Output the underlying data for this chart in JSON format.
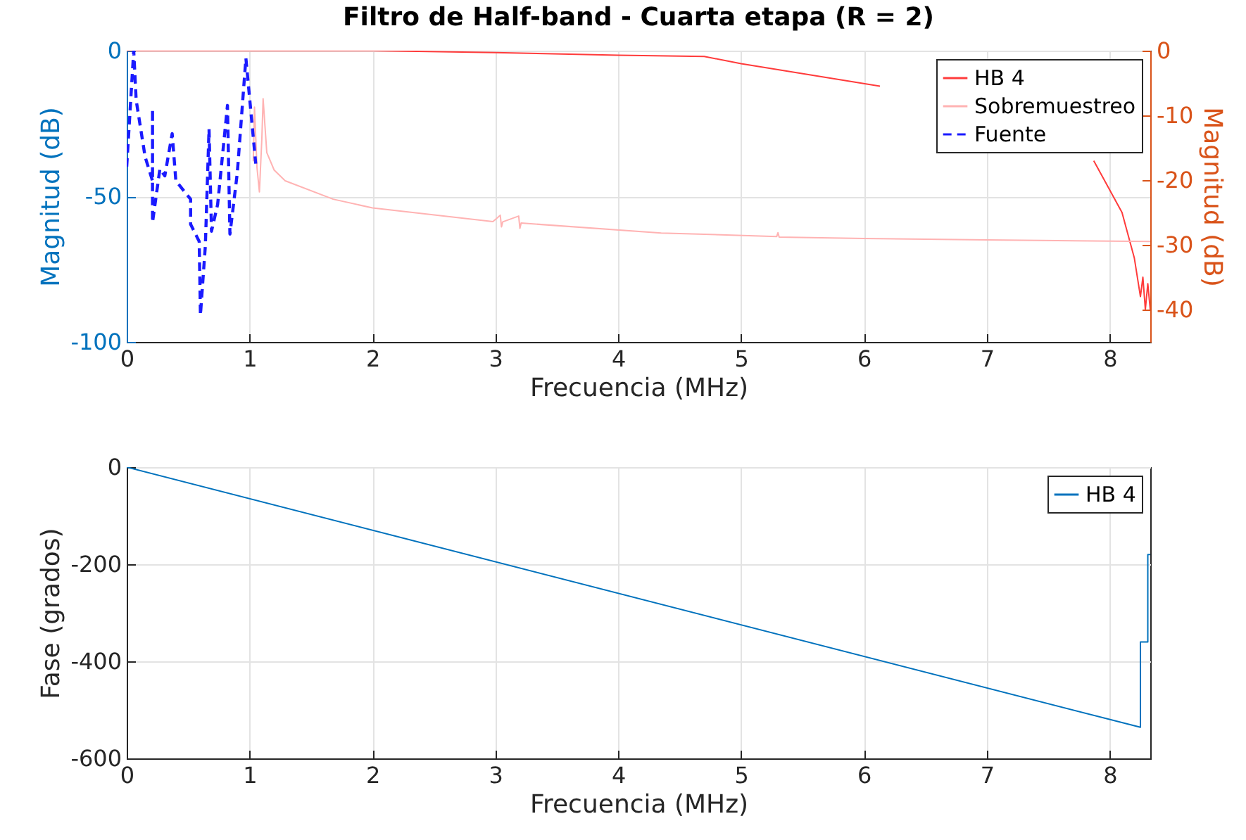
{
  "chart_data": [
    {
      "type": "line",
      "title": "Filtro de Half-band - Cuarta etapa (R = 2)",
      "xlabel": "Frecuencia (MHz)",
      "ylabel": "Magnitud (dB)",
      "y2label": "Magnitud (dB)",
      "xlim": [
        0,
        8.33
      ],
      "xticks": [
        0,
        1,
        2,
        3,
        4,
        5,
        6,
        7,
        8
      ],
      "ylim": [
        -100,
        0
      ],
      "yticks": [
        -100,
        -50,
        0
      ],
      "y2lim": [
        -45,
        0
      ],
      "y2ticks": [
        -40,
        -30,
        -20,
        -10,
        0
      ],
      "grid": true,
      "legend": "top right",
      "series": [
        {
          "name": "HB 4",
          "color": "#ff3b3b",
          "axis": "y2",
          "line_style": "solid",
          "x": [
            0,
            1,
            2,
            3,
            4,
            4.7,
            5,
            6.13,
            7,
            7.5,
            7.87,
            8.1,
            8.2,
            8.25,
            8.27,
            8.29,
            8.31,
            8.33
          ],
          "values": [
            0,
            0,
            0,
            -0.3,
            -0.7,
            -0.9,
            -2,
            -5.5,
            null,
            null,
            -17,
            -25,
            -32,
            -38,
            -35,
            -40,
            -36,
            -40
          ]
        },
        {
          "name": "Sobremuestreo",
          "color": "#ffb3b3",
          "axis": "y",
          "line_style": "solid",
          "x": [
            1.03,
            1.04,
            1.06,
            1.08,
            1.1,
            1.11,
            1.14,
            1.2,
            1.29,
            1.68,
            2.0,
            2.98,
            3.04,
            3.05,
            3.06,
            3.19,
            3.2,
            3.21,
            4.35,
            5.29,
            5.3,
            5.31,
            6.0,
            7.0,
            8.33
          ],
          "values": [
            -38,
            -19.4,
            -40,
            -48.5,
            -30,
            -16.5,
            -35,
            -41,
            -44.7,
            -51,
            -54,
            -58.7,
            -56.5,
            -60.5,
            -58.8,
            -56.8,
            -61,
            -59.2,
            -62.6,
            -63.8,
            -62.5,
            -64,
            -64.5,
            -65,
            -65.5
          ]
        },
        {
          "name": "Fuente",
          "color": "#1a1aff",
          "axis": "y",
          "line_style": "dashed",
          "x": [
            0,
            0.057,
            0.077,
            0.15,
            0.21,
            0.21,
            0.21,
            0.27,
            0.31,
            0.37,
            0.4,
            0.52,
            0.52,
            0.59,
            0.6,
            0.64,
            0.67,
            0.69,
            0.74,
            0.82,
            0.84,
            0.9,
            0.97,
            1.05
          ],
          "values": [
            -39.8,
            0,
            -17,
            -36.5,
            -44.7,
            -20,
            -59,
            -40.6,
            -43,
            -28.5,
            -44.7,
            -51,
            -59.6,
            -65.5,
            -90.8,
            -67,
            -26.9,
            -62,
            -52.8,
            -18.8,
            -63,
            -42,
            -2.6,
            -38.8
          ]
        }
      ]
    },
    {
      "type": "line",
      "xlabel": "Frecuencia (MHz)",
      "ylabel": "Fase (grados)",
      "xlim": [
        0,
        8.33
      ],
      "xticks": [
        0,
        1,
        2,
        3,
        4,
        5,
        6,
        7,
        8
      ],
      "ylim": [
        -600,
        0
      ],
      "yticks": [
        -600,
        -400,
        -200,
        0
      ],
      "grid": true,
      "legend": "top right",
      "series": [
        {
          "name": "HB 4",
          "color": "#0072bd",
          "x": [
            0,
            8.25,
            8.25,
            8.31,
            8.31,
            8.33
          ],
          "values": [
            0,
            -536,
            -360,
            -360,
            -180,
            -180
          ]
        }
      ]
    }
  ]
}
